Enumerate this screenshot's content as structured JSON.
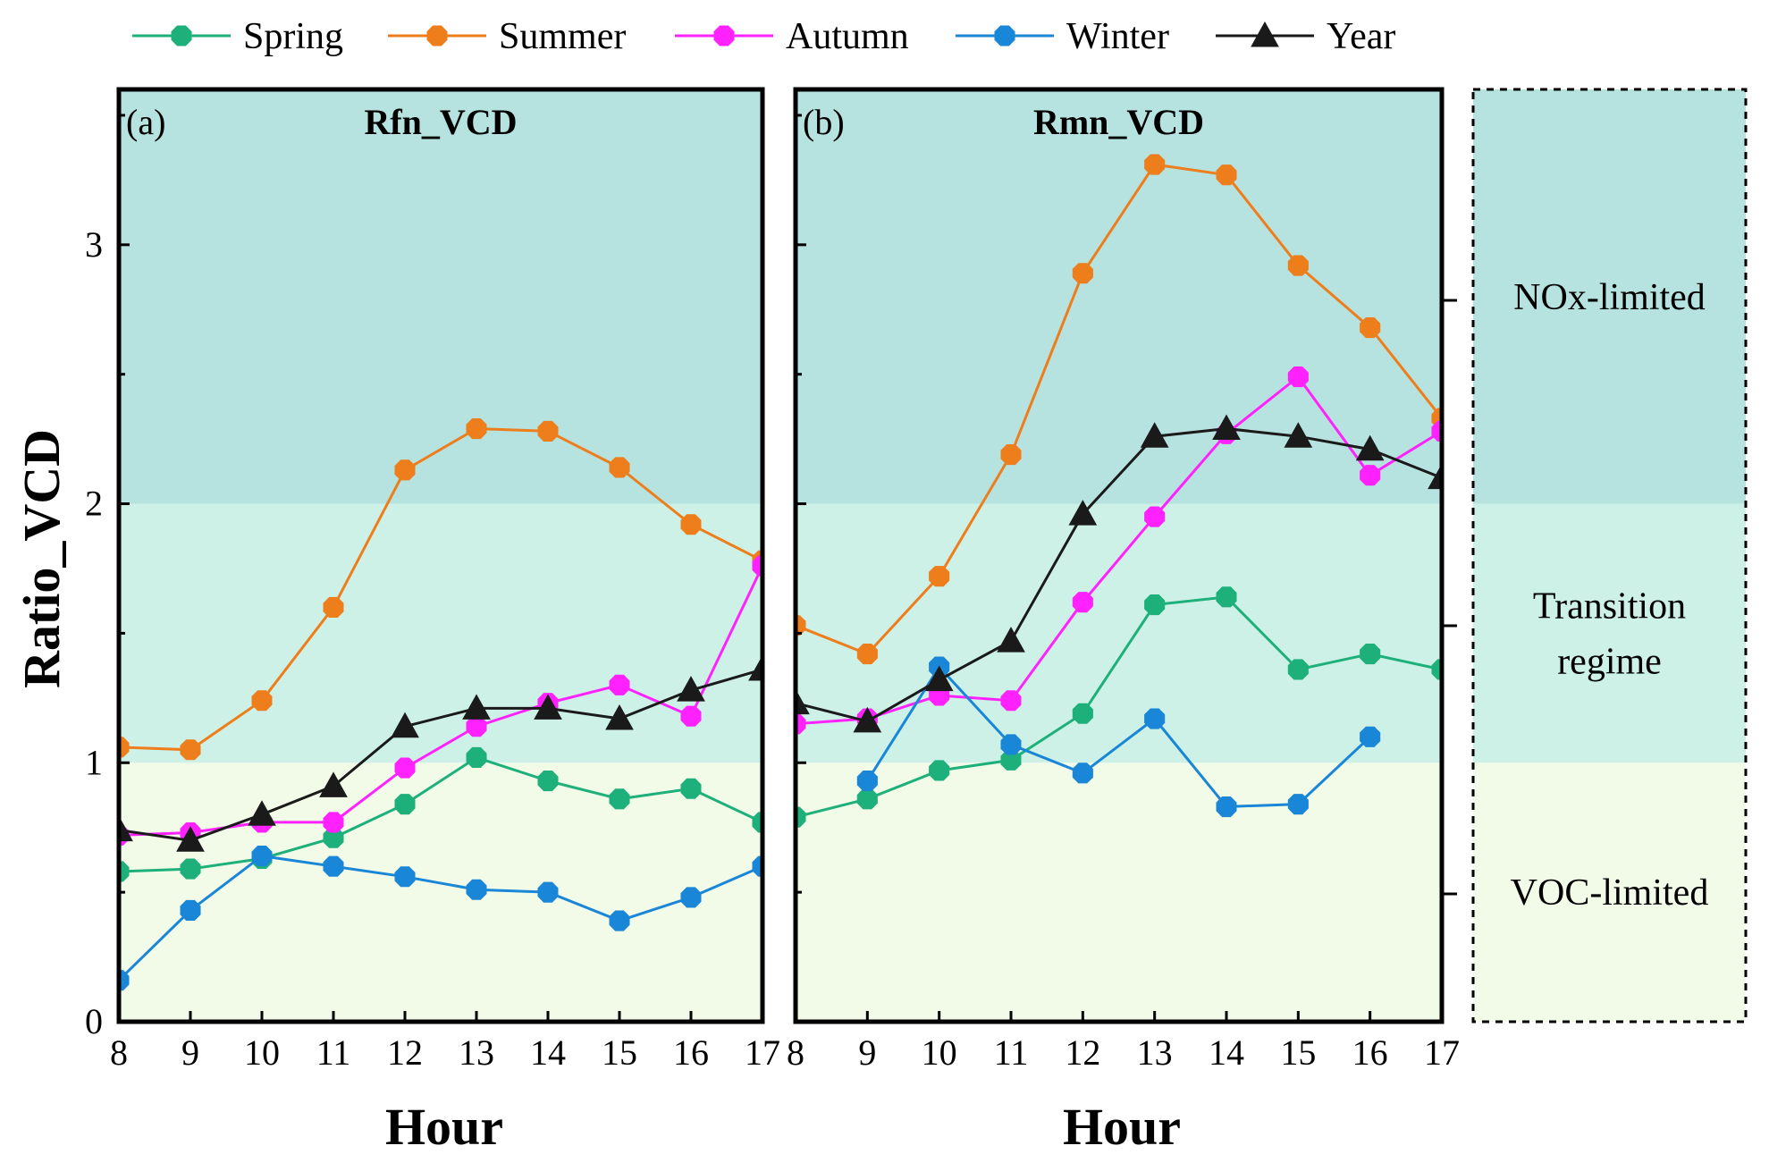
{
  "chart_data": {
    "type": "line",
    "ylabel": "Ratio_VCD",
    "xlabel": "Hour",
    "x": [
      8,
      9,
      10,
      11,
      12,
      13,
      14,
      15,
      16,
      17
    ],
    "xlim": [
      8,
      17
    ],
    "ylim": [
      0,
      3.6
    ],
    "yticks": [
      0,
      1,
      2,
      3
    ],
    "legend": [
      "Spring",
      "Summer",
      "Autumn",
      "Winter",
      "Year"
    ],
    "colors": {
      "Spring": "#1db07a",
      "Summer": "#ee7d1c",
      "Autumn": "#ff22ff",
      "Winter": "#1a86d8",
      "Year": "#1a1a1a",
      "nox_bg": "#b6e3e0",
      "transition_bg": "#cdf1e6",
      "voc_bg": "#f2fbe8"
    },
    "regimes": [
      {
        "name": "NOx-limited",
        "lines": [
          "NOx-limited"
        ],
        "range": [
          2,
          3.6
        ]
      },
      {
        "name": "Transition regime",
        "lines": [
          "Transition",
          "regime"
        ],
        "range": [
          1,
          2
        ]
      },
      {
        "name": "VOC-limited",
        "lines": [
          "VOC-limited"
        ],
        "range": [
          0,
          1
        ]
      }
    ],
    "panels": [
      {
        "tag": "(a)",
        "title": "Rfn_VCD",
        "series": [
          {
            "name": "Spring",
            "marker": "circle",
            "values": [
              0.58,
              0.59,
              0.63,
              0.71,
              0.84,
              1.02,
              0.93,
              0.86,
              0.9,
              0.77
            ]
          },
          {
            "name": "Summer",
            "marker": "circle",
            "values": [
              1.06,
              1.05,
              1.24,
              1.6,
              2.13,
              2.29,
              2.28,
              2.14,
              1.92,
              1.78
            ]
          },
          {
            "name": "Autumn",
            "marker": "circle",
            "values": [
              0.72,
              0.73,
              0.77,
              0.77,
              0.98,
              1.14,
              1.23,
              1.3,
              1.18,
              1.76
            ]
          },
          {
            "name": "Winter",
            "marker": "circle",
            "values": [
              0.16,
              0.43,
              0.64,
              0.6,
              0.56,
              0.51,
              0.5,
              0.39,
              0.48,
              0.6
            ]
          },
          {
            "name": "Year",
            "marker": "triangle",
            "values": [
              0.74,
              0.7,
              0.8,
              0.91,
              1.14,
              1.21,
              1.21,
              1.17,
              1.28,
              1.36
            ]
          }
        ]
      },
      {
        "tag": "(b)",
        "title": "Rmn_VCD",
        "series": [
          {
            "name": "Spring",
            "marker": "circle",
            "values": [
              0.79,
              0.86,
              0.97,
              1.01,
              1.19,
              1.61,
              1.64,
              1.36,
              1.42,
              1.36
            ]
          },
          {
            "name": "Summer",
            "marker": "circle",
            "values": [
              1.53,
              1.42,
              1.72,
              2.19,
              2.89,
              3.31,
              3.27,
              2.92,
              2.68,
              2.33
            ]
          },
          {
            "name": "Autumn",
            "marker": "circle",
            "values": [
              1.15,
              1.17,
              1.26,
              1.24,
              1.62,
              1.95,
              2.27,
              2.49,
              2.11,
              2.28
            ]
          },
          {
            "name": "Winter",
            "marker": "circle",
            "values": [
              null,
              0.93,
              1.37,
              1.07,
              0.96,
              1.17,
              0.83,
              0.84,
              1.1,
              null
            ]
          },
          {
            "name": "Year",
            "marker": "triangle",
            "values": [
              1.23,
              1.16,
              1.32,
              1.47,
              1.96,
              2.26,
              2.29,
              2.26,
              2.21,
              2.1
            ]
          }
        ]
      }
    ]
  }
}
